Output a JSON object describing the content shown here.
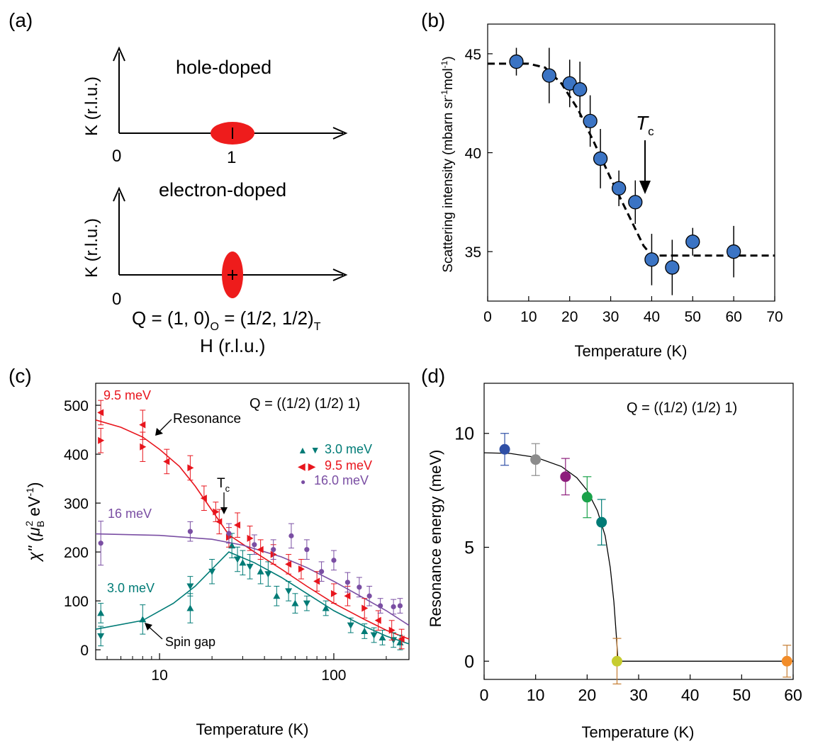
{
  "panel_a": {
    "label": "(a)",
    "top": {
      "title": "hole-doped",
      "ylabel": "K (r.l.u.)",
      "zero": "0",
      "one": "1"
    },
    "bottom": {
      "title": "electron-doped",
      "ylabel": "K (r.l.u.)",
      "zero": "0"
    },
    "q_prefix": "Q = (1, 0)",
    "q_sub_o": "O",
    "q_mid": " = (1/2, 1/2)",
    "q_sub_t": "T",
    "xlabel": "H (r.l.u.)",
    "colors": {
      "ellipse": "#ee1c1c"
    }
  },
  "chart_data": [
    {
      "panel": "(b)",
      "type": "scatter",
      "xlabel": "Temperature (K)",
      "ylabel": "Scattering intensity (mbarn sr",
      "ylabel_sup1": "-1",
      "ylabel_mid": "mol",
      "ylabel_sup2": "-1",
      "ylabel_end": ")",
      "xlim": [
        0,
        70
      ],
      "ylim": [
        32.5,
        46.5
      ],
      "xticks": [
        0,
        10,
        20,
        30,
        40,
        50,
        60,
        70
      ],
      "yticks": [
        35,
        40,
        45
      ],
      "annotation": {
        "text": "T",
        "sub": "c",
        "at_x": 39
      },
      "points": [
        {
          "x": 7,
          "y": 44.6,
          "err": 0.7
        },
        {
          "x": 15,
          "y": 43.9,
          "err": 1.4
        },
        {
          "x": 20,
          "y": 43.5,
          "err": 1.2
        },
        {
          "x": 22.5,
          "y": 43.2,
          "err": 1.4
        },
        {
          "x": 25,
          "y": 41.6,
          "err": 1.3
        },
        {
          "x": 27.5,
          "y": 39.7,
          "err": 1.5
        },
        {
          "x": 32,
          "y": 38.2,
          "err": 0.9
        },
        {
          "x": 36,
          "y": 37.5,
          "err": 1.1
        },
        {
          "x": 40,
          "y": 34.6,
          "err": 1.3
        },
        {
          "x": 45,
          "y": 34.2,
          "err": 1.4
        },
        {
          "x": 50,
          "y": 35.5,
          "err": 0.7
        },
        {
          "x": 60,
          "y": 35.0,
          "err": 1.3
        }
      ],
      "fit": {
        "x": [
          0,
          10,
          14,
          18,
          22,
          26,
          30,
          34,
          38,
          40,
          70
        ],
        "y": [
          44.5,
          44.5,
          44.3,
          43.5,
          42.2,
          40.5,
          38.7,
          37.0,
          35.3,
          34.8,
          34.8
        ]
      },
      "colors": {
        "marker": "#3b74c4"
      }
    },
    {
      "panel": "(c)",
      "type": "scatter",
      "xscale": "log",
      "xlabel": "Temperature (K)",
      "ylabel_prefix": "χ\" (μ",
      "ylabel_sub": "B",
      "ylabel_sup": "2",
      "ylabel_mid": " eV",
      "ylabel_sup2": "-1",
      "ylabel_end": ")",
      "xlim": [
        4.3,
        270
      ],
      "ylim": [
        -20,
        545
      ],
      "xticks": [
        10,
        100
      ],
      "xtick_labels": [
        "10",
        "100"
      ],
      "yticks": [
        0,
        100,
        200,
        300,
        400,
        500
      ],
      "q_label": "Q = ((1/2) (1/2) 1)",
      "legend": [
        {
          "symbol": "▲ ▼",
          "label": "3.0 meV",
          "color": "#007b76"
        },
        {
          "symbol": "◀ ▶",
          "label": "9.5 meV",
          "color": "#e8151d"
        },
        {
          "symbol": "●",
          "label": "16.0 meV",
          "color": "#7a4ea3"
        }
      ],
      "curve_labels": {
        "red": "9.5 meV",
        "purple": "16 meV",
        "teal": "3.0 meV"
      },
      "annotations": {
        "resonance": "Resonance",
        "spin_gap": "Spin gap",
        "tc": "T",
        "tc_sub": "c"
      },
      "series": [
        {
          "name": "3.0 meV",
          "color": "#007b76",
          "points": [
            {
              "x": 4.6,
              "y": 75,
              "err": 20
            },
            {
              "x": 4.6,
              "y": 28,
              "err": 20
            },
            {
              "x": 8,
              "y": 62,
              "err": 30
            },
            {
              "x": 15,
              "y": 130,
              "err": 20
            },
            {
              "x": 15,
              "y": 85,
              "err": 30
            },
            {
              "x": 20,
              "y": 160,
              "err": 25
            },
            {
              "x": 26,
              "y": 213,
              "err": 25
            },
            {
              "x": 28,
              "y": 185,
              "err": 25
            },
            {
              "x": 30,
              "y": 178,
              "err": 25
            },
            {
              "x": 33,
              "y": 170,
              "err": 25
            },
            {
              "x": 38,
              "y": 160,
              "err": 25
            },
            {
              "x": 42,
              "y": 155,
              "err": 25
            },
            {
              "x": 47,
              "y": 110,
              "err": 20
            },
            {
              "x": 55,
              "y": 120,
              "err": 20
            },
            {
              "x": 60,
              "y": 95,
              "err": 20
            },
            {
              "x": 70,
              "y": 95,
              "err": 15
            },
            {
              "x": 90,
              "y": 85,
              "err": 15
            },
            {
              "x": 125,
              "y": 50,
              "err": 15
            },
            {
              "x": 150,
              "y": 38,
              "err": 15
            },
            {
              "x": 170,
              "y": 30,
              "err": 15
            },
            {
              "x": 190,
              "y": 25,
              "err": 15
            },
            {
              "x": 220,
              "y": 20,
              "err": 15
            },
            {
              "x": 240,
              "y": 15,
              "err": 15
            }
          ],
          "fit": {
            "x": [
              4.3,
              8,
              12,
              16,
              20,
              25,
              35,
              50,
              70,
              100,
              150,
              200,
              270
            ],
            "y": [
              42,
              60,
              95,
              130,
              165,
              200,
              178,
              148,
              115,
              80,
              48,
              28,
              12
            ]
          }
        },
        {
          "name": "9.5 meV",
          "color": "#e8151d",
          "points": [
            {
              "x": 4.6,
              "y": 485,
              "err": 25
            },
            {
              "x": 4.6,
              "y": 428,
              "err": 25
            },
            {
              "x": 8,
              "y": 460,
              "err": 30
            },
            {
              "x": 8,
              "y": 415,
              "err": 30
            },
            {
              "x": 11,
              "y": 385,
              "err": 25
            },
            {
              "x": 15,
              "y": 372,
              "err": 25
            },
            {
              "x": 18,
              "y": 310,
              "err": 25
            },
            {
              "x": 21,
              "y": 282,
              "err": 20
            },
            {
              "x": 22,
              "y": 262,
              "err": 25
            },
            {
              "x": 25,
              "y": 230,
              "err": 20
            },
            {
              "x": 28,
              "y": 255,
              "err": 25
            },
            {
              "x": 33,
              "y": 228,
              "err": 25
            },
            {
              "x": 38,
              "y": 205,
              "err": 20
            },
            {
              "x": 45,
              "y": 195,
              "err": 20
            },
            {
              "x": 55,
              "y": 175,
              "err": 20
            },
            {
              "x": 65,
              "y": 165,
              "err": 20
            },
            {
              "x": 80,
              "y": 140,
              "err": 20
            },
            {
              "x": 100,
              "y": 115,
              "err": 20
            },
            {
              "x": 120,
              "y": 110,
              "err": 20
            },
            {
              "x": 150,
              "y": 85,
              "err": 20
            },
            {
              "x": 180,
              "y": 60,
              "err": 20
            },
            {
              "x": 215,
              "y": 40,
              "err": 20
            },
            {
              "x": 245,
              "y": 22,
              "err": 20
            }
          ],
          "fit": {
            "x": [
              4.3,
              6,
              8,
              10,
              13,
              16,
              20,
              25,
              35,
              50,
              70,
              100,
              150,
              200,
              270
            ],
            "y": [
              470,
              455,
              435,
              410,
              375,
              335,
              285,
              235,
              200,
              165,
              130,
              95,
              62,
              40,
              22
            ]
          }
        },
        {
          "name": "16.0 meV",
          "color": "#7a4ea3",
          "points": [
            {
              "x": 4.6,
              "y": 218,
              "err": 45
            },
            {
              "x": 15,
              "y": 242,
              "err": 20
            },
            {
              "x": 25,
              "y": 238,
              "err": 20
            },
            {
              "x": 35,
              "y": 215,
              "err": 20
            },
            {
              "x": 45,
              "y": 205,
              "err": 20
            },
            {
              "x": 57,
              "y": 233,
              "err": 25
            },
            {
              "x": 70,
              "y": 205,
              "err": 20
            },
            {
              "x": 85,
              "y": 160,
              "err": 20
            },
            {
              "x": 100,
              "y": 183,
              "err": 20
            },
            {
              "x": 120,
              "y": 138,
              "err": 20
            },
            {
              "x": 140,
              "y": 128,
              "err": 20
            },
            {
              "x": 160,
              "y": 110,
              "err": 20
            },
            {
              "x": 185,
              "y": 90,
              "err": 15
            },
            {
              "x": 220,
              "y": 88,
              "err": 15
            },
            {
              "x": 240,
              "y": 90,
              "err": 15
            }
          ],
          "fit": {
            "x": [
              4.3,
              10,
              20,
              30,
              50,
              70,
              100,
              150,
              200,
              270
            ],
            "y": [
              237,
              234,
              226,
              214,
              190,
              168,
              140,
              105,
              80,
              50
            ]
          }
        }
      ]
    },
    {
      "panel": "(d)",
      "type": "scatter",
      "xlabel": "Temperature (K)",
      "ylabel": "Resonance energy (meV)",
      "xlim": [
        0,
        60
      ],
      "ylim": [
        -0.8,
        12.2
      ],
      "xticks": [
        0,
        10,
        20,
        30,
        40,
        50,
        60
      ],
      "yticks": [
        0,
        5,
        10
      ],
      "q_label": "Q  = ((1/2) (1/2) 1)",
      "points": [
        {
          "x": 4,
          "y": 9.3,
          "err": 0.7,
          "color": "#2f4fa6"
        },
        {
          "x": 10,
          "y": 8.85,
          "err": 0.7,
          "color": "#8c8c8c"
        },
        {
          "x": 15.8,
          "y": 8.1,
          "err": 0.8,
          "color": "#8d1e7c"
        },
        {
          "x": 20,
          "y": 7.2,
          "err": 0.9,
          "color": "#1aa24a"
        },
        {
          "x": 22.8,
          "y": 6.1,
          "err": 1.0,
          "color": "#007b76"
        },
        {
          "x": 25.8,
          "y": 0.0,
          "err": 1.0,
          "color": "#c7cc2f"
        },
        {
          "x": 58.8,
          "y": 0.0,
          "err": 0.7,
          "color": "#f28c28"
        }
      ],
      "fit": {
        "x": [
          0,
          5,
          10,
          15,
          18,
          20,
          22,
          23.5,
          24.5,
          25.2,
          25.7,
          26,
          60
        ],
        "y": [
          9.15,
          9.12,
          8.95,
          8.55,
          8.05,
          7.5,
          6.6,
          5.5,
          4.1,
          2.6,
          1.0,
          0.0,
          0.0
        ]
      },
      "colors": {
        "fit": "#000000",
        "error": "#c57c30"
      }
    }
  ]
}
